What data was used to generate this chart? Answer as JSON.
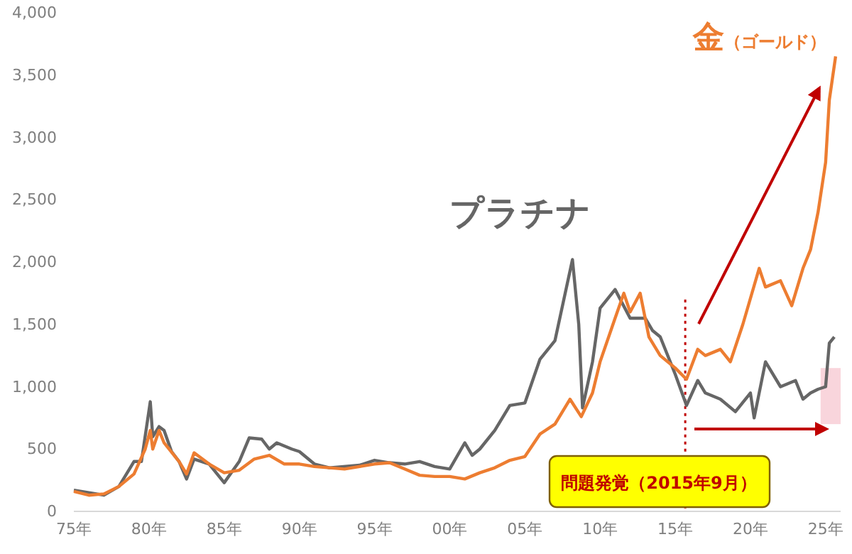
{
  "chart_data": {
    "type": "line",
    "xlim": [
      "1975-01",
      "2026-01"
    ],
    "ylim": [
      0,
      4000
    ],
    "xticks": [
      {
        "value": "1975",
        "label": "75年"
      },
      {
        "value": "1980",
        "label": "80年"
      },
      {
        "value": "1985",
        "label": "85年"
      },
      {
        "value": "1990",
        "label": "90年"
      },
      {
        "value": "1995",
        "label": "95年"
      },
      {
        "value": "2000",
        "label": "00年"
      },
      {
        "value": "2005",
        "label": "05年"
      },
      {
        "value": "2010",
        "label": "10年"
      },
      {
        "value": "2015",
        "label": "15年"
      },
      {
        "value": "2020",
        "label": "20年"
      },
      {
        "value": "2025",
        "label": "25年"
      }
    ],
    "yticks": [
      0,
      {
        "value": 500,
        "label": "500"
      },
      {
        "value": 1000,
        "label": "1,000"
      },
      {
        "value": 1500,
        "label": "1,500"
      },
      {
        "value": 2000,
        "label": "2,000"
      },
      {
        "value": 2500,
        "label": "2,500"
      },
      {
        "value": 3000,
        "label": "3,000"
      },
      {
        "value": 3500,
        "label": "3,500"
      },
      {
        "value": 4000,
        "label": "4,000"
      }
    ],
    "grid": false,
    "marker": "none",
    "line_style": "solid",
    "series": [
      {
        "name": "プラチナ",
        "color": "#666666",
        "x": [
          "1975-01",
          "1976-07",
          "1977-01",
          "1978-01",
          "1979-01",
          "1979-07",
          "1980-02",
          "1980-04",
          "1980-09",
          "1981-01",
          "1981-07",
          "1982-01",
          "1982-07",
          "1983-01",
          "1984-01",
          "1985-01",
          "1986-01",
          "1986-09",
          "1987-07",
          "1988-01",
          "1988-07",
          "1989-07",
          "1990-01",
          "1991-01",
          "1992-01",
          "1994-01",
          "1995-01",
          "1996-01",
          "1997-01",
          "1998-01",
          "1999-01",
          "2000-01",
          "2001-01",
          "2001-07",
          "2002-01",
          "2003-01",
          "2004-01",
          "2005-01",
          "2006-01",
          "2007-01",
          "2008-03",
          "2008-08",
          "2008-11",
          "2009-07",
          "2010-01",
          "2011-01",
          "2012-01",
          "2013-01",
          "2013-07",
          "2014-01",
          "2015-01",
          "2015-10",
          "2016-07",
          "2017-01",
          "2018-01",
          "2019-01",
          "2020-01",
          "2020-04",
          "2021-01",
          "2022-01",
          "2023-01",
          "2023-07",
          "2024-01",
          "2024-07",
          "2025-01",
          "2025-04",
          "2025-08"
        ],
        "values": [
          170,
          140,
          130,
          200,
          400,
          400,
          880,
          600,
          680,
          650,
          480,
          400,
          260,
          420,
          380,
          230,
          400,
          590,
          580,
          500,
          550,
          500,
          480,
          380,
          350,
          370,
          410,
          390,
          380,
          400,
          360,
          340,
          550,
          450,
          500,
          650,
          850,
          870,
          1220,
          1370,
          2020,
          1500,
          830,
          1200,
          1630,
          1780,
          1550,
          1550,
          1450,
          1400,
          1100,
          850,
          1050,
          950,
          900,
          800,
          950,
          750,
          1200,
          1000,
          1050,
          900,
          950,
          980,
          1000,
          1350,
          1400
        ]
      },
      {
        "name": "金（ゴールド）",
        "color": "#ed7d31",
        "x": [
          "1975-01",
          "1976-01",
          "1977-01",
          "1978-01",
          "1979-01",
          "1979-10",
          "1980-02",
          "1980-04",
          "1980-09",
          "1981-01",
          "1982-01",
          "1982-07",
          "1983-01",
          "1984-01",
          "1985-01",
          "1986-01",
          "1987-01",
          "1988-01",
          "1989-01",
          "1990-01",
          "1991-01",
          "1993-01",
          "1995-01",
          "1996-01",
          "1997-01",
          "1998-01",
          "1999-01",
          "2000-01",
          "2001-01",
          "2002-01",
          "2003-01",
          "2004-01",
          "2005-01",
          "2006-01",
          "2007-01",
          "2008-01",
          "2008-10",
          "2009-07",
          "2010-01",
          "2011-01",
          "2011-08",
          "2012-01",
          "2012-09",
          "2013-04",
          "2014-01",
          "2015-01",
          "2015-10",
          "2016-07",
          "2017-01",
          "2018-01",
          "2018-09",
          "2019-07",
          "2020-08",
          "2021-01",
          "2022-01",
          "2022-10",
          "2023-07",
          "2024-01",
          "2024-07",
          "2025-01",
          "2025-04",
          "2025-09"
        ],
        "values": [
          160,
          130,
          140,
          200,
          300,
          500,
          650,
          500,
          650,
          550,
          400,
          300,
          470,
          380,
          310,
          330,
          420,
          450,
          380,
          380,
          360,
          340,
          380,
          390,
          340,
          290,
          280,
          280,
          260,
          310,
          350,
          410,
          440,
          620,
          700,
          900,
          760,
          950,
          1200,
          1550,
          1750,
          1600,
          1750,
          1400,
          1250,
          1150,
          1060,
          1300,
          1250,
          1300,
          1200,
          1500,
          1950,
          1800,
          1850,
          1650,
          1950,
          2100,
          2400,
          2800,
          3300,
          3650
        ]
      }
    ],
    "ref_lines": [
      {
        "axis": "x",
        "value": "2015-09",
        "color": "#c00000",
        "line_style": "dotted"
      }
    ],
    "bands": [
      {
        "axis": "x",
        "from": "2024-09",
        "to": "2026-01",
        "color": "#f9d5dc"
      }
    ],
    "annotations": [
      "問題発覚（2015年9月）"
    ]
  }
}
